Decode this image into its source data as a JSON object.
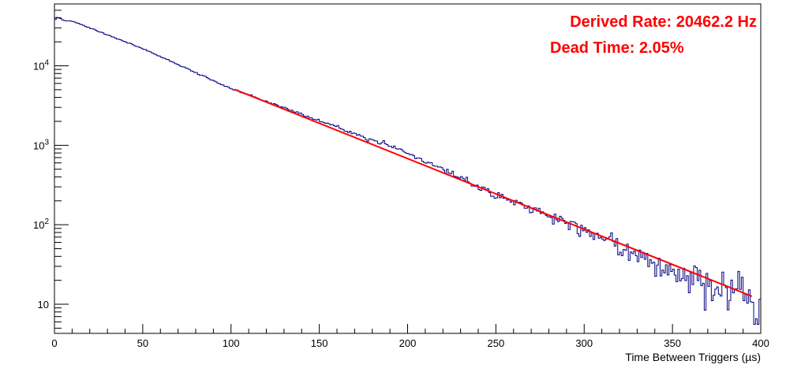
{
  "chart_data": {
    "type": "line",
    "title": "",
    "xlabel": "Time Between Triggers (µs)",
    "ylabel": "",
    "xlim": [
      0,
      400
    ],
    "ylim": [
      4.3,
      60000
    ],
    "y_scale": "log",
    "grid": false,
    "legend": "none",
    "x_ticks": [
      "0",
      "50",
      "100",
      "150",
      "200",
      "250",
      "300",
      "350",
      "400"
    ],
    "y_ticks": [
      {
        "value": 10,
        "mantissa": "10",
        "exp": ""
      },
      {
        "value": 100,
        "mantissa": "10",
        "exp": "2"
      },
      {
        "value": 1000,
        "mantissa": "10",
        "exp": "3"
      },
      {
        "value": 10000,
        "mantissa": "10",
        "exp": "4"
      }
    ],
    "annotations": [
      "Derived Rate: 20462.2 Hz",
      "Dead Time: 2.05%"
    ],
    "series": [
      {
        "style": "histogram",
        "color": "#000080",
        "bin_width": 1,
        "x_range": [
          0,
          400
        ],
        "points": [
          [
            0,
            36000
          ],
          [
            1,
            40800
          ],
          [
            3,
            40000
          ],
          [
            5,
            37200
          ],
          [
            10,
            36500
          ],
          [
            50,
            16500
          ],
          [
            100,
            5150
          ],
          [
            150,
            2050
          ],
          [
            200,
            810
          ],
          [
            250,
            235
          ],
          [
            300,
            88
          ],
          [
            350,
            26
          ],
          [
            390,
            16
          ],
          [
            398,
            9
          ]
        ]
      },
      {
        "name": "",
        "style": "fit",
        "color": "#ff0000",
        "x": [
          102,
          395
        ],
        "y": [
          5050,
          12.6
        ]
      }
    ]
  }
}
